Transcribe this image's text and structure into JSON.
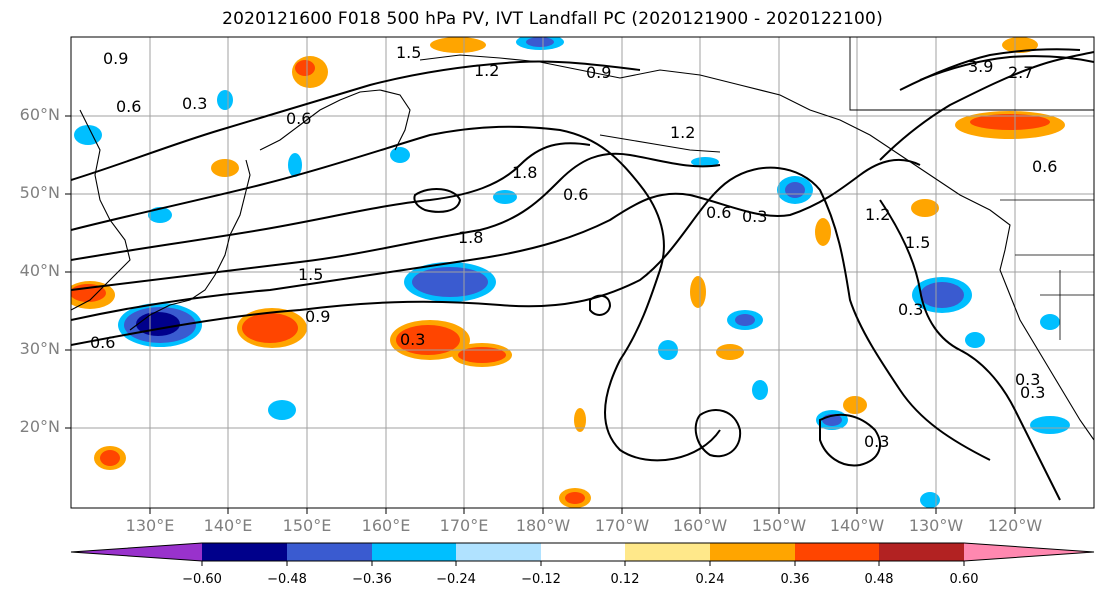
{
  "title": "2020121600 F018 500 hPa PV, IVT Landfall PC (2020121900 - 2020122100)",
  "lat_labels": [
    "60°N",
    "50°N",
    "40°N",
    "30°N",
    "20°N"
  ],
  "lon_labels": [
    "130°E",
    "140°E",
    "150°E",
    "160°E",
    "170°E",
    "180°W",
    "170°W",
    "160°W",
    "150°W",
    "140°W",
    "130°W",
    "120°W"
  ],
  "contour_labels": [
    "0.9",
    "0.6",
    "0.3",
    "1.5",
    "1.2",
    "0.9",
    "0.6",
    "1.8",
    "0.6",
    "0.3",
    "0.6",
    "1.2",
    "1.5",
    "0.3",
    "0.6",
    "1.5",
    "0.9",
    "1.8",
    "0.3",
    "0.3",
    "0.3",
    "0.3",
    "1.2",
    "0.6",
    "3.9",
    "2.7"
  ],
  "colorbar": {
    "ticks": [
      "−0.60",
      "−0.48",
      "−0.36",
      "−0.24",
      "−0.12",
      "0.12",
      "0.24",
      "0.36",
      "0.48",
      "0.60"
    ],
    "colors": [
      "#9932cc",
      "#00008b",
      "#3a5bd0",
      "#00bfff",
      "#b0e2ff",
      "#ffffff",
      "#ffe88a",
      "#ffa500",
      "#ff4500",
      "#b22222",
      "#ff88b0"
    ]
  },
  "legend_colors": {
    "strong_negative": "#3a5bd0",
    "negative": "#00bfff",
    "weak_negative": "#b0e2ff",
    "weak_positive": "#ffe88a",
    "positive": "#ffa500",
    "strong_positive": "#ff4500",
    "contour": "#000000",
    "grid": "#a0a0a0"
  }
}
